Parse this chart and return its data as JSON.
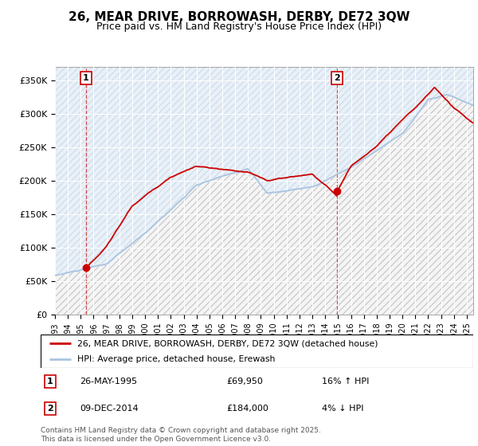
{
  "title": "26, MEAR DRIVE, BORROWASH, DERBY, DE72 3QW",
  "subtitle": "Price paid vs. HM Land Registry's House Price Index (HPI)",
  "ylabel_ticks": [
    "£0",
    "£50K",
    "£100K",
    "£150K",
    "£200K",
    "£250K",
    "£300K",
    "£350K"
  ],
  "ytick_values": [
    0,
    50000,
    100000,
    150000,
    200000,
    250000,
    300000,
    350000
  ],
  "ylim": [
    0,
    370000
  ],
  "xlim_year": [
    1993,
    2025.5
  ],
  "legend_line1": "26, MEAR DRIVE, BORROWASH, DERBY, DE72 3QW (detached house)",
  "legend_line2": "HPI: Average price, detached house, Erewash",
  "annotation1_label": "1",
  "annotation1_date": "26-MAY-1995",
  "annotation1_price": "£69,950",
  "annotation1_hpi": "16% ↑ HPI",
  "annotation2_label": "2",
  "annotation2_date": "09-DEC-2014",
  "annotation2_price": "£184,000",
  "annotation2_hpi": "4% ↓ HPI",
  "footer": "Contains HM Land Registry data © Crown copyright and database right 2025.\nThis data is licensed under the Open Government Licence v3.0.",
  "color_red": "#cc0000",
  "color_blue": "#6699cc",
  "color_blue_light": "#aac4e0",
  "color_hatch_bg": "#f0f0f0",
  "marker1_x": 1995.4,
  "marker1_y": 69950,
  "marker2_x": 2014.93,
  "marker2_y": 184000,
  "title_fontsize": 11,
  "subtitle_fontsize": 9
}
